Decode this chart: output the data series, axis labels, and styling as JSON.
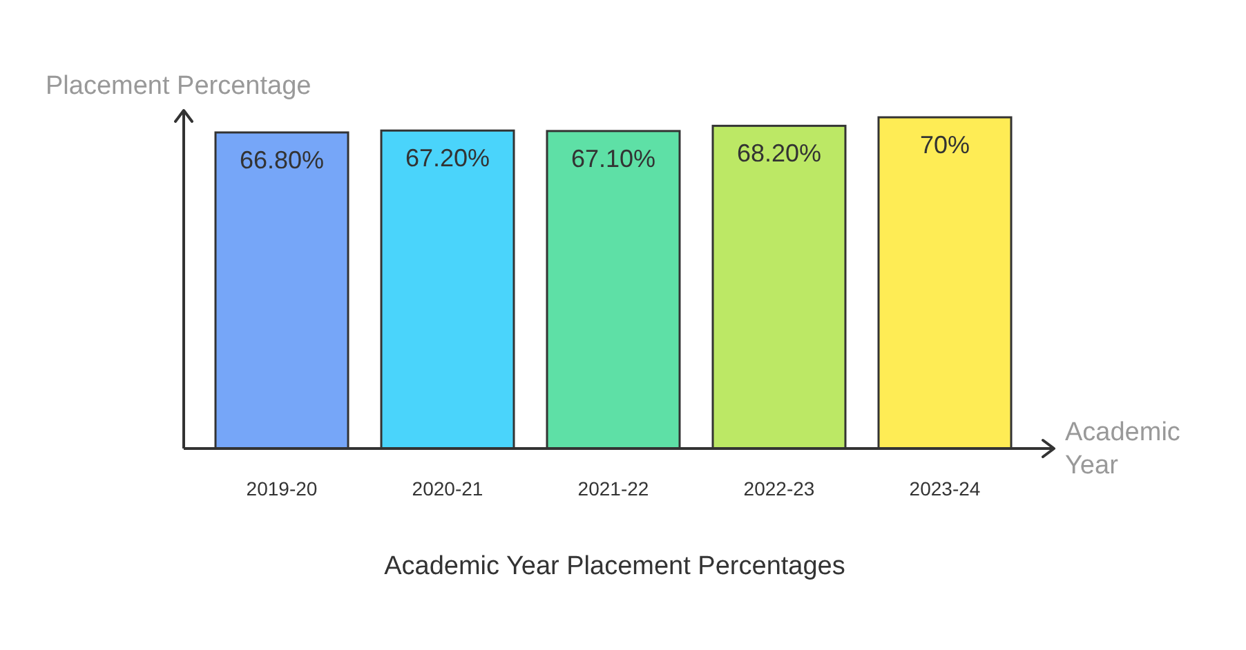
{
  "chart_data": {
    "type": "bar",
    "title": "Academic Year Placement Percentages",
    "xlabel": "Academic Year",
    "ylabel": "Placement Percentage",
    "categories": [
      "2019-20",
      "2020-21",
      "2021-22",
      "2022-23",
      "2023-24"
    ],
    "values": [
      66.8,
      67.2,
      67.1,
      68.2,
      70
    ],
    "value_labels": [
      "66.80%",
      "67.20%",
      "67.10%",
      "68.20%",
      "70%"
    ],
    "colors": [
      "#76a6f8",
      "#4ad4fb",
      "#5ee0a6",
      "#bce865",
      "#feec55"
    ]
  }
}
